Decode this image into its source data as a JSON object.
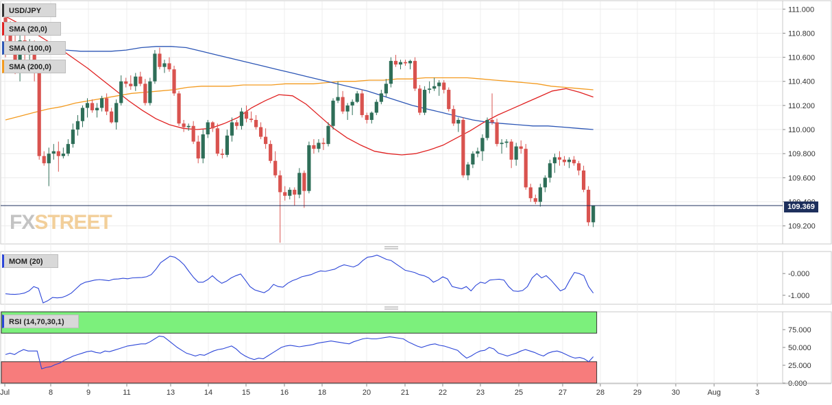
{
  "tags": {
    "main": [
      "USD/JPY",
      "SMA (20,0)",
      "SMA (100,0)",
      "SMA (200,0)"
    ],
    "mom": "MOM (20)",
    "rsi": "RSI (14,70,30,1)"
  },
  "logo": {
    "fx": "FX",
    "street": "STREET"
  },
  "colors": {
    "up": "#2e6e58",
    "down": "#d9534f",
    "sma20": "#e02020",
    "sma100": "#2b55b5",
    "sma200": "#f39a1e",
    "mom": "#2b45d8",
    "rsi": "#2b45d8",
    "rsi_over": "#7cf07c",
    "rsi_under": "#f77c7c",
    "price_line": "#1d2f5c"
  },
  "chart_data": [
    {
      "type": "candlestick",
      "pair": "USD/JPY",
      "current_price": "109.369",
      "ylim": [
        109.05,
        111.07
      ],
      "y_ticks": [
        "111.000",
        "110.800",
        "110.600",
        "110.400",
        "110.200",
        "110.000",
        "109.800",
        "109.600",
        "109.400",
        "109.200"
      ],
      "x_ticks": [
        "Jul",
        "8",
        "9",
        "11",
        "13",
        "14",
        "15",
        "16",
        "18",
        "20",
        "21",
        "22",
        "23",
        "25",
        "27",
        "28",
        "29",
        "30",
        "Aug",
        "3"
      ],
      "candles": [
        [
          110.93,
          110.95,
          110.6,
          110.78
        ],
        [
          110.78,
          110.9,
          110.65,
          110.72
        ],
        [
          110.72,
          110.8,
          110.46,
          110.55
        ],
        [
          110.55,
          110.8,
          110.4,
          110.74
        ],
        [
          110.74,
          110.78,
          110.58,
          110.62
        ],
        [
          110.62,
          110.75,
          110.55,
          110.7
        ],
        [
          110.7,
          110.74,
          110.4,
          110.52
        ],
        [
          110.5,
          110.55,
          109.75,
          109.78
        ],
        [
          109.78,
          109.82,
          109.7,
          109.72
        ],
        [
          109.72,
          109.85,
          109.53,
          109.8
        ],
        [
          109.8,
          109.88,
          109.75,
          109.82
        ],
        [
          109.82,
          109.9,
          109.65,
          109.78
        ],
        [
          109.78,
          109.85,
          109.76,
          109.8
        ],
        [
          109.8,
          109.92,
          109.78,
          109.88
        ],
        [
          109.88,
          110.05,
          109.85,
          110.0
        ],
        [
          110.0,
          110.12,
          109.95,
          110.07
        ],
        [
          110.07,
          110.2,
          110.02,
          110.18
        ],
        [
          110.18,
          110.26,
          110.1,
          110.22
        ],
        [
          110.22,
          110.25,
          110.14,
          110.16
        ],
        [
          110.16,
          110.22,
          110.1,
          110.18
        ],
        [
          110.18,
          110.28,
          110.15,
          110.26
        ],
        [
          110.26,
          110.3,
          110.12,
          110.15
        ],
        [
          110.15,
          110.18,
          110.05,
          110.06
        ],
        [
          110.06,
          110.25,
          110.0,
          110.22
        ],
        [
          110.22,
          110.45,
          110.2,
          110.4
        ],
        [
          110.4,
          110.43,
          110.35,
          110.38
        ],
        [
          110.38,
          110.45,
          110.33,
          110.36
        ],
        [
          110.36,
          110.47,
          110.32,
          110.44
        ],
        [
          110.44,
          110.48,
          110.36,
          110.38
        ],
        [
          110.38,
          110.42,
          110.2,
          110.22
        ],
        [
          110.22,
          110.43,
          110.2,
          110.4
        ],
        [
          110.4,
          110.66,
          110.38,
          110.63
        ],
        [
          110.63,
          110.68,
          110.5,
          110.52
        ],
        [
          110.52,
          110.58,
          110.47,
          110.55
        ],
        [
          110.55,
          110.6,
          110.48,
          110.5
        ],
        [
          110.5,
          110.53,
          110.28,
          110.3
        ],
        [
          110.3,
          110.32,
          110.03,
          110.05
        ],
        [
          110.05,
          110.08,
          109.98,
          110.02
        ],
        [
          110.02,
          110.05,
          109.99,
          110.03
        ],
        [
          110.03,
          110.07,
          109.88,
          109.9
        ],
        [
          109.9,
          109.95,
          109.72,
          109.76
        ],
        [
          109.76,
          110.0,
          109.72,
          109.96
        ],
        [
          109.96,
          110.08,
          109.93,
          110.06
        ],
        [
          110.06,
          110.07,
          109.98,
          110.01
        ],
        [
          110.01,
          110.05,
          109.78,
          109.8
        ],
        [
          109.8,
          109.84,
          109.76,
          109.79
        ],
        [
          109.79,
          110.0,
          109.77,
          109.95
        ],
        [
          109.95,
          110.1,
          109.9,
          110.06
        ],
        [
          110.06,
          110.08,
          110.0,
          110.03
        ],
        [
          110.03,
          110.18,
          110.0,
          110.15
        ],
        [
          110.15,
          110.2,
          110.06,
          110.09
        ],
        [
          110.09,
          110.15,
          110.06,
          110.08
        ],
        [
          110.08,
          110.12,
          110.0,
          110.02
        ],
        [
          110.02,
          110.06,
          109.92,
          109.94
        ],
        [
          109.94,
          110.01,
          109.84,
          109.88
        ],
        [
          109.88,
          109.91,
          109.72,
          109.74
        ],
        [
          109.74,
          109.82,
          109.6,
          109.62
        ],
        [
          109.62,
          109.66,
          109.06,
          109.48
        ],
        [
          109.48,
          109.53,
          109.41,
          109.45
        ],
        [
          109.45,
          109.52,
          109.42,
          109.5
        ],
        [
          109.5,
          109.52,
          109.37,
          109.46
        ],
        [
          109.46,
          109.68,
          109.43,
          109.64
        ],
        [
          109.64,
          109.66,
          109.35,
          109.49
        ],
        [
          109.49,
          109.9,
          109.47,
          109.87
        ],
        [
          109.87,
          109.92,
          109.8,
          109.84
        ],
        [
          109.84,
          109.92,
          109.81,
          109.89
        ],
        [
          109.89,
          109.93,
          109.83,
          109.88
        ],
        [
          109.88,
          110.06,
          109.86,
          110.03
        ],
        [
          110.03,
          110.26,
          110.0,
          110.24
        ],
        [
          110.24,
          110.4,
          110.22,
          110.27
        ],
        [
          110.27,
          110.32,
          110.13,
          110.15
        ],
        [
          110.15,
          110.22,
          110.08,
          110.2
        ],
        [
          110.2,
          110.25,
          110.12,
          110.23
        ],
        [
          110.23,
          110.32,
          110.22,
          110.3
        ],
        [
          110.3,
          110.33,
          110.1,
          110.12
        ],
        [
          110.12,
          110.14,
          110.05,
          110.08
        ],
        [
          110.08,
          110.15,
          110.05,
          110.14
        ],
        [
          110.14,
          110.25,
          110.12,
          110.23
        ],
        [
          110.23,
          110.33,
          110.21,
          110.3
        ],
        [
          110.3,
          110.42,
          110.27,
          110.38
        ],
        [
          110.38,
          110.6,
          110.35,
          110.57
        ],
        [
          110.57,
          110.62,
          110.52,
          110.54
        ],
        [
          110.54,
          110.58,
          110.5,
          110.56
        ],
        [
          110.56,
          110.58,
          110.53,
          110.55
        ],
        [
          110.55,
          110.58,
          110.5,
          110.57
        ],
        [
          110.57,
          110.6,
          110.32,
          110.34
        ],
        [
          110.34,
          110.37,
          110.12,
          110.14
        ],
        [
          110.14,
          110.36,
          110.12,
          110.33
        ],
        [
          110.33,
          110.4,
          110.3,
          110.34
        ],
        [
          110.34,
          110.43,
          110.32,
          110.36
        ],
        [
          110.36,
          110.41,
          110.28,
          110.39
        ],
        [
          110.39,
          110.41,
          110.3,
          110.33
        ],
        [
          110.33,
          110.35,
          110.15,
          110.17
        ],
        [
          110.17,
          110.2,
          110.03,
          110.05
        ],
        [
          110.05,
          110.1,
          109.98,
          110.08
        ],
        [
          110.08,
          110.1,
          109.6,
          109.62
        ],
        [
          109.62,
          109.73,
          109.58,
          109.71
        ],
        [
          109.71,
          109.82,
          109.68,
          109.8
        ],
        [
          109.8,
          109.85,
          109.77,
          109.82
        ],
        [
          109.82,
          109.96,
          109.74,
          109.93
        ],
        [
          109.93,
          110.1,
          109.91,
          110.08
        ],
        [
          110.08,
          110.3,
          110.04,
          110.06
        ],
        [
          110.06,
          110.09,
          109.86,
          109.88
        ],
        [
          109.88,
          109.92,
          109.8,
          109.89
        ],
        [
          109.89,
          109.92,
          109.85,
          109.9
        ],
        [
          109.9,
          109.92,
          109.68,
          109.75
        ],
        [
          109.75,
          109.89,
          109.7,
          109.86
        ],
        [
          109.86,
          109.91,
          109.8,
          109.84
        ],
        [
          109.84,
          109.88,
          109.5,
          109.52
        ],
        [
          109.52,
          109.55,
          109.4,
          109.43
        ],
        [
          109.43,
          109.46,
          109.38,
          109.4
        ],
        [
          109.4,
          109.55,
          109.36,
          109.52
        ],
        [
          109.52,
          109.62,
          109.48,
          109.6
        ],
        [
          109.6,
          109.75,
          109.56,
          109.72
        ],
        [
          109.72,
          109.8,
          109.64,
          109.77
        ],
        [
          109.77,
          109.82,
          109.7,
          109.75
        ],
        [
          109.75,
          109.78,
          109.7,
          109.73
        ],
        [
          109.73,
          109.77,
          109.68,
          109.75
        ],
        [
          109.75,
          109.78,
          109.7,
          109.72
        ],
        [
          109.72,
          109.74,
          109.62,
          109.66
        ],
        [
          109.66,
          109.7,
          109.48,
          109.5
        ],
        [
          109.5,
          109.53,
          109.2,
          109.23
        ],
        [
          109.23,
          109.37,
          109.19,
          109.37
        ]
      ],
      "sma20": [
        110.94,
        110.88,
        110.81,
        110.74,
        110.67,
        110.59,
        110.51,
        110.42,
        110.33,
        110.24,
        110.16,
        110.09,
        110.04,
        110.01,
        110.0,
        110.01,
        110.05,
        110.1,
        110.18,
        110.24,
        110.29,
        110.28,
        110.21,
        110.11,
        110.01,
        109.93,
        109.87,
        109.82,
        109.8,
        109.79,
        109.8,
        109.83,
        109.87,
        109.93,
        109.99,
        110.06,
        110.12,
        110.17,
        110.22,
        110.27,
        110.32,
        110.34,
        110.31,
        110.27
      ],
      "sma100": [
        110.7,
        110.69,
        110.68,
        110.67,
        110.66,
        110.65,
        110.65,
        110.65,
        110.66,
        110.68,
        110.69,
        110.69,
        110.68,
        110.65,
        110.62,
        110.59,
        110.56,
        110.53,
        110.5,
        110.47,
        110.44,
        110.41,
        110.38,
        110.35,
        110.32,
        110.28,
        110.24,
        110.2,
        110.17,
        110.14,
        110.11,
        110.08,
        110.06,
        110.05,
        110.04,
        110.03,
        110.03,
        110.02,
        110.01,
        110.0
      ],
      "sma200": [
        110.08,
        110.11,
        110.14,
        110.17,
        110.19,
        110.22,
        110.24,
        110.26,
        110.28,
        110.3,
        110.31,
        110.32,
        110.33,
        110.35,
        110.36,
        110.36,
        110.36,
        110.37,
        110.37,
        110.37,
        110.38,
        110.38,
        110.38,
        110.39,
        110.4,
        110.4,
        110.41,
        110.41,
        110.42,
        110.42,
        110.43,
        110.43,
        110.43,
        110.43,
        110.42,
        110.41,
        110.4,
        110.39,
        110.38,
        110.36,
        110.35,
        110.34,
        110.33
      ]
    },
    {
      "type": "line",
      "name": "MOM (20)",
      "ylim": [
        -1.35,
        0.95
      ],
      "y_ticks": [
        "-0.000",
        "-1.000"
      ],
      "values": [
        -0.93,
        -0.95,
        -0.96,
        -0.94,
        -0.9,
        -0.8,
        -0.6,
        -0.68,
        -1.35,
        -1.25,
        -1.1,
        -1.12,
        -1.1,
        -1.02,
        -0.9,
        -0.7,
        -0.5,
        -0.4,
        -0.35,
        -0.3,
        -0.28,
        -0.3,
        -0.33,
        -0.26,
        -0.25,
        -0.22,
        -0.24,
        -0.2,
        -0.19,
        -0.18,
        -0.15,
        -0.05,
        0.2,
        0.5,
        0.65,
        0.8,
        0.75,
        0.6,
        0.4,
        0.1,
        -0.18,
        -0.4,
        -0.4,
        -0.28,
        -0.1,
        -0.3,
        -0.45,
        -0.35,
        -0.2,
        -0.1,
        -0.02,
        -0.3,
        -0.6,
        -0.75,
        -0.82,
        -0.88,
        -0.75,
        -0.5,
        -0.6,
        -0.63,
        -0.45,
        -0.33,
        -0.25,
        -0.15,
        -0.1,
        -0.05,
        0.05,
        0.12,
        0.1,
        0.15,
        0.2,
        0.32,
        0.4,
        0.35,
        0.3,
        0.4,
        0.6,
        0.75,
        0.78,
        0.85,
        0.75,
        0.65,
        0.6,
        0.45,
        0.3,
        0.15,
        0.1,
        0.05,
        -0.05,
        -0.1,
        -0.2,
        -0.4,
        -0.3,
        -0.15,
        -0.25,
        -0.6,
        -0.65,
        -0.7,
        -0.6,
        -0.8,
        -0.55,
        -0.4,
        -0.45,
        -0.3,
        -0.28,
        -0.26,
        -0.3,
        -0.6,
        -0.8,
        -0.82,
        -0.78,
        -0.6,
        -0.2,
        0.0,
        -0.2,
        -0.1,
        -0.3,
        -0.55,
        -0.8,
        -0.7,
        -0.3,
        0.05,
        0.0,
        -0.1,
        -0.6,
        -0.9
      ]
    },
    {
      "type": "line",
      "name": "RSI (14,70,30,1)",
      "ylim": [
        0,
        100
      ],
      "y_ticks": [
        "75.000",
        "50.000",
        "25.000",
        "0.000"
      ],
      "bands": {
        "overbought": 70,
        "oversold": 30
      },
      "values": [
        40,
        42,
        40,
        44,
        47,
        45,
        45,
        45,
        20,
        22,
        23,
        26,
        28,
        32,
        35,
        38,
        40,
        42,
        44,
        45,
        43,
        42,
        45,
        44,
        46,
        48,
        50,
        52,
        53,
        54,
        55,
        55,
        58,
        62,
        66,
        65,
        60,
        55,
        50,
        46,
        42,
        40,
        38,
        40,
        39,
        42,
        45,
        47,
        48,
        50,
        52,
        48,
        42,
        38,
        35,
        33,
        35,
        34,
        38,
        42,
        46,
        50,
        52,
        53,
        52,
        51,
        52,
        53,
        54,
        56,
        57,
        58,
        59,
        58,
        57,
        56,
        55,
        58,
        60,
        62,
        63,
        62,
        62,
        63,
        64,
        65,
        64,
        63,
        62,
        58,
        55,
        52,
        50,
        52,
        54,
        55,
        53,
        52,
        50,
        48,
        46,
        40,
        35,
        38,
        42,
        45,
        46,
        50,
        48,
        42,
        40,
        38,
        40,
        42,
        45,
        47,
        45,
        43,
        40,
        38,
        42,
        44,
        45,
        43,
        40,
        37,
        35,
        36,
        34,
        30,
        37
      ]
    }
  ]
}
